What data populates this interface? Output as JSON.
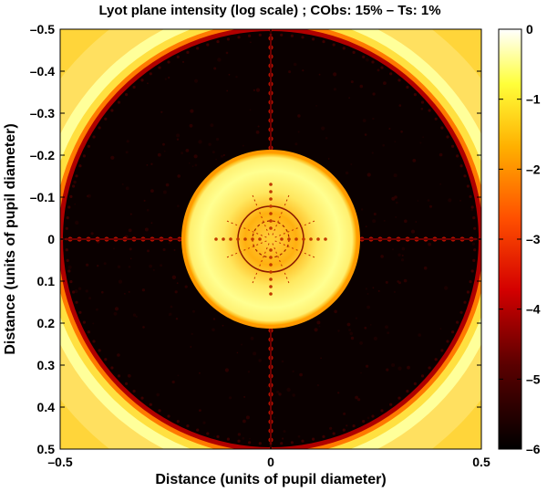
{
  "chart_data": {
    "type": "heatmap",
    "title": "Lyot plane intensity (log scale) ; CObs: 15% – Ts: 1%",
    "xlabel": "Distance (units of pupil diameter)",
    "ylabel": "Distance (units of pupil diameter)",
    "xlim": [
      -0.5,
      0.5
    ],
    "ylim": [
      -0.5,
      0.5
    ],
    "y_direction": "reversed",
    "x_ticks": [
      -0.5,
      0,
      0.5
    ],
    "x_tick_labels": [
      "–0.5",
      "0",
      "0.5"
    ],
    "y_ticks": [
      -0.5,
      -0.4,
      -0.3,
      -0.2,
      -0.1,
      0,
      0.1,
      0.2,
      0.3,
      0.4,
      0.5
    ],
    "y_tick_labels": [
      "–0.5",
      "–0.4",
      "–0.3",
      "–0.2",
      "–0.1",
      "0",
      "0.1",
      "0.2",
      "0.3",
      "0.4",
      "0.5"
    ],
    "colorbar": {
      "range": [
        -6,
        0
      ],
      "ticks": [
        0,
        -1,
        -2,
        -3,
        -4,
        -5,
        -6
      ],
      "tick_labels": [
        "0",
        "–1",
        "–2",
        "–3",
        "–4",
        "–5",
        "–6"
      ],
      "colormap": "hot"
    },
    "features": {
      "central_disk_radius": 0.21,
      "pupil_edge_radius": 0.5,
      "spider_arms": "vertical and horizontal bright dotted lines through center"
    }
  },
  "colors": {
    "black": "#000000",
    "dark_red": "#7a0000",
    "red": "#ff1a00",
    "orange": "#ff8c00",
    "yellow": "#ffff40",
    "white": "#ffffff"
  }
}
